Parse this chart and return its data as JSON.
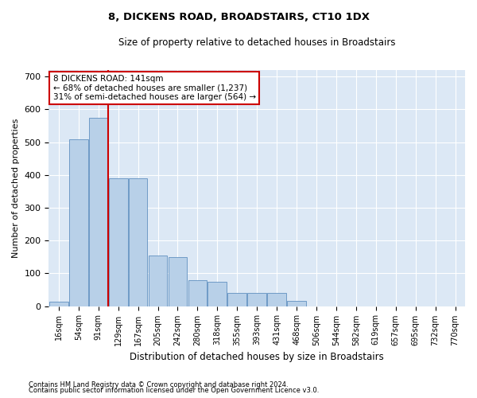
{
  "title": "8, DICKENS ROAD, BROADSTAIRS, CT10 1DX",
  "subtitle": "Size of property relative to detached houses in Broadstairs",
  "xlabel": "Distribution of detached houses by size in Broadstairs",
  "ylabel": "Number of detached properties",
  "bar_color": "#b8d0e8",
  "bar_edge_color": "#6090c0",
  "background_color": "#dce8f5",
  "grid_color": "#ffffff",
  "categories": [
    "16sqm",
    "54sqm",
    "91sqm",
    "129sqm",
    "167sqm",
    "205sqm",
    "242sqm",
    "280sqm",
    "318sqm",
    "355sqm",
    "393sqm",
    "431sqm",
    "468sqm",
    "506sqm",
    "544sqm",
    "582sqm",
    "619sqm",
    "657sqm",
    "695sqm",
    "732sqm",
    "770sqm"
  ],
  "values": [
    14,
    510,
    575,
    390,
    390,
    155,
    150,
    80,
    75,
    40,
    40,
    40,
    15,
    0,
    0,
    0,
    0,
    0,
    0,
    0,
    0
  ],
  "property_line_x": 2.5,
  "annotation_text": "8 DICKENS ROAD: 141sqm\n← 68% of detached houses are smaller (1,237)\n31% of semi-detached houses are larger (564) →",
  "annotation_box_facecolor": "#ffffff",
  "annotation_box_edgecolor": "#cc0000",
  "ylim": [
    0,
    720
  ],
  "yticks": [
    0,
    100,
    200,
    300,
    400,
    500,
    600,
    700
  ],
  "footnote1": "Contains HM Land Registry data © Crown copyright and database right 2024.",
  "footnote2": "Contains public sector information licensed under the Open Government Licence v3.0."
}
